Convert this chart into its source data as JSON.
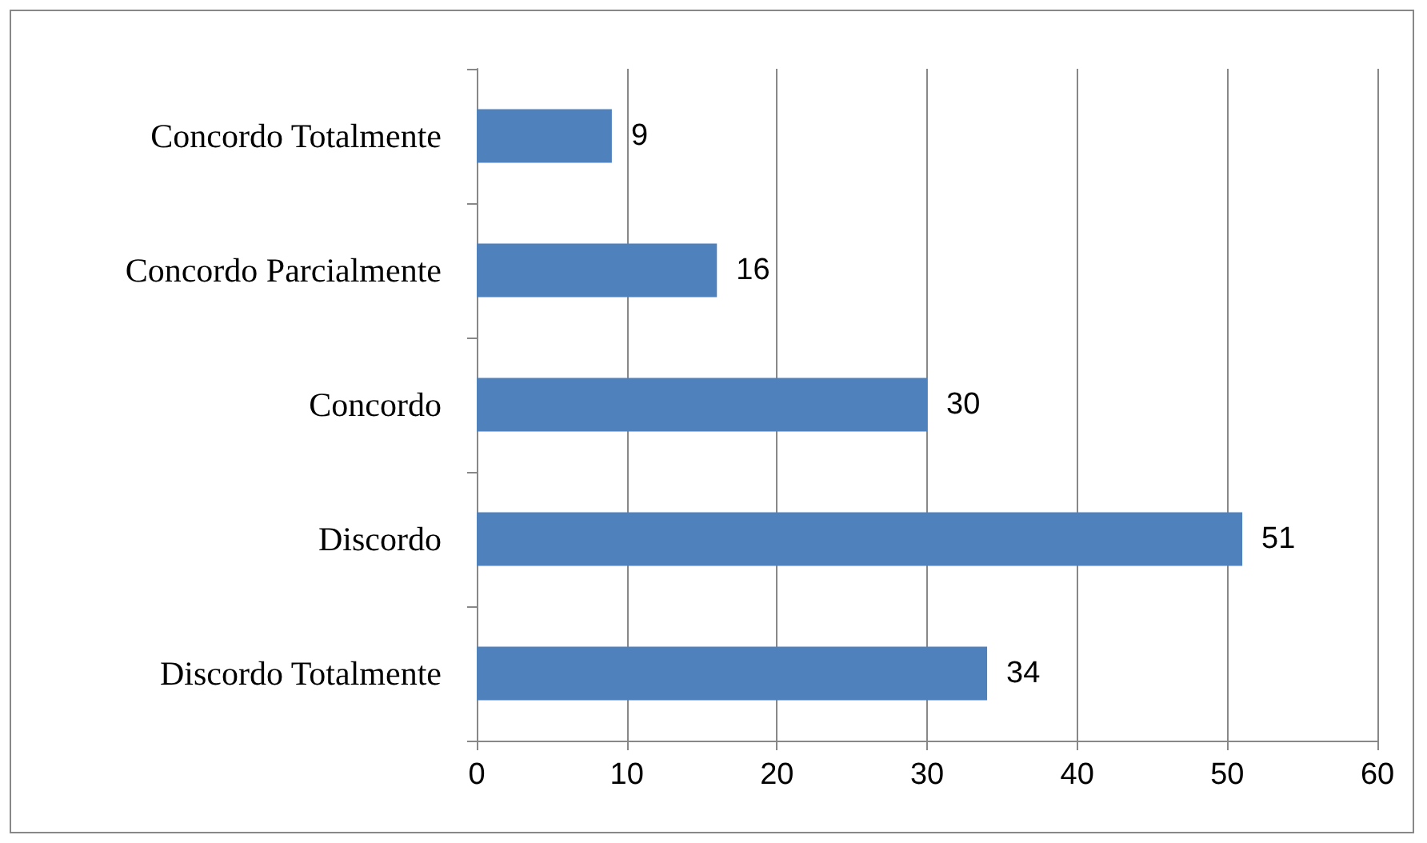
{
  "chart_data": {
    "type": "bar",
    "orientation": "horizontal",
    "categories": [
      "Concordo Totalmente",
      "Concordo Parcialmente",
      "Concordo",
      "Discordo",
      "Discordo Totalmente"
    ],
    "values": [
      9,
      16,
      30,
      51,
      34
    ],
    "color": "#4f81bd",
    "xlim": [
      0,
      60
    ],
    "xticks": [
      0,
      10,
      20,
      30,
      40,
      50,
      60
    ],
    "grid": "x",
    "data_labels": true
  }
}
